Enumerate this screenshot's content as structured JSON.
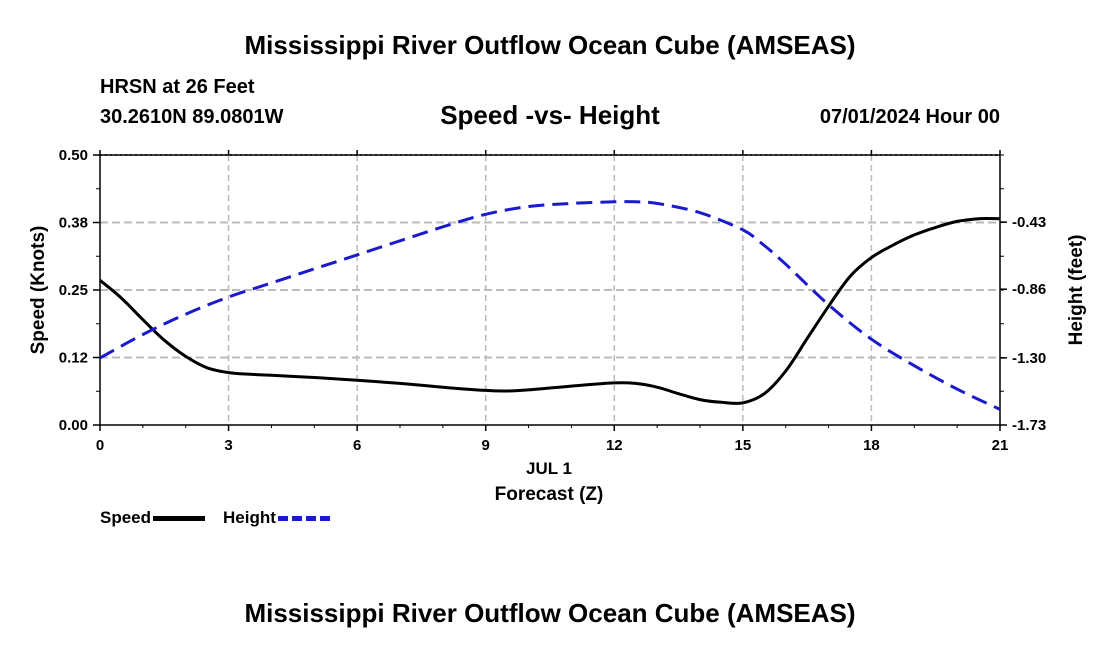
{
  "page": {
    "title": "Mississippi River Outflow Ocean Cube (AMSEAS)",
    "title_repeat": "Mississippi River Outflow Ocean Cube (AMSEAS)",
    "station": "HRSN at 26 Feet",
    "coords": "30.2610N  89.0801W",
    "timestamp": "07/01/2024 Hour 00"
  },
  "legend": {
    "speed": "Speed",
    "height": "Height"
  },
  "colors": {
    "speed": "#000000",
    "height": "#1a1acc",
    "grid": "#bbbbbb"
  },
  "chart_data": {
    "type": "line",
    "title": "Speed -vs- Height",
    "xlabel": "Forecast (Z)",
    "date_label": "JUL 1",
    "ylabel": "Speed (Knots)",
    "y2label": "Height (feet)",
    "xlim": [
      0,
      21
    ],
    "ylim": [
      0,
      0.5
    ],
    "y2lim": [
      -1.73,
      -0.0
    ],
    "x_ticks": [
      0,
      3,
      6,
      9,
      12,
      15,
      18,
      21
    ],
    "x_tick_labels": [
      "0",
      "3",
      "6",
      "9",
      "12",
      "15",
      "18",
      "21"
    ],
    "y_ticks": [
      0,
      0.125,
      0.25,
      0.375,
      0.5
    ],
    "y_tick_labels": [
      "0.00",
      "0.12",
      "0.25",
      "0.38",
      "0.50"
    ],
    "y2_ticks": [
      -1.73,
      -1.3,
      -0.86,
      -0.43
    ],
    "y2_tick_labels": [
      "-1.73",
      "-1.30",
      "-0.86",
      "-0.43"
    ],
    "grid": true,
    "series": [
      {
        "name": "Speed",
        "axis": "left",
        "style": "solid",
        "x": [
          0,
          0.5,
          1,
          1.5,
          2,
          2.5,
          3,
          3.5,
          4,
          5,
          6,
          7,
          8,
          9,
          9.5,
          10,
          11,
          12,
          12.5,
          13,
          13.5,
          14,
          14.5,
          15,
          15.5,
          16,
          16.5,
          17,
          17.5,
          18,
          18.5,
          19,
          19.5,
          20,
          20.5,
          21
        ],
        "values": [
          0.268,
          0.235,
          0.195,
          0.157,
          0.127,
          0.106,
          0.097,
          0.094,
          0.092,
          0.088,
          0.083,
          0.077,
          0.07,
          0.064,
          0.063,
          0.065,
          0.072,
          0.078,
          0.077,
          0.07,
          0.058,
          0.047,
          0.042,
          0.041,
          0.058,
          0.1,
          0.16,
          0.22,
          0.275,
          0.31,
          0.333,
          0.352,
          0.366,
          0.377,
          0.382,
          0.382
        ]
      },
      {
        "name": "Height",
        "axis": "right",
        "style": "dashed",
        "x": [
          0,
          1,
          2,
          3,
          4,
          5,
          6,
          7,
          8,
          9,
          10,
          11,
          12,
          12.5,
          13,
          14,
          15,
          15.5,
          16,
          17,
          18,
          19,
          20,
          21
        ],
        "values": [
          -1.3,
          -1.15,
          -1.02,
          -0.91,
          -0.82,
          -0.73,
          -0.64,
          -0.55,
          -0.46,
          -0.38,
          -0.33,
          -0.31,
          -0.3,
          -0.3,
          -0.31,
          -0.37,
          -0.48,
          -0.58,
          -0.7,
          -0.96,
          -1.18,
          -1.35,
          -1.5,
          -1.63
        ]
      }
    ]
  }
}
